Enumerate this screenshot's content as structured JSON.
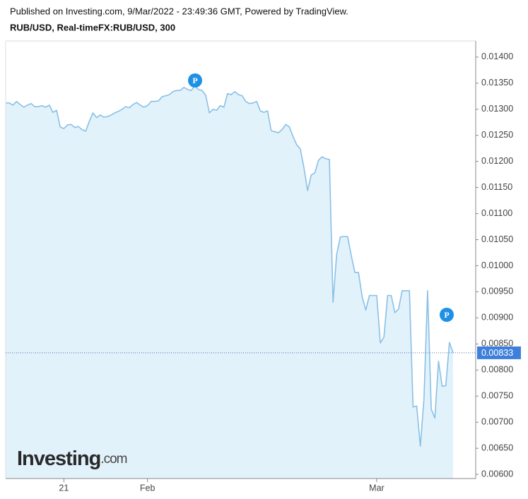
{
  "chart_data": {
    "type": "area",
    "title": "Published on Investing.com, 9/Mar/2022 - 23:49:36 GMT, Powered by TradingView.",
    "subtitle": "RUB/USD, Real-timeFX:RUB/USD, 300",
    "watermark": [
      "Investing",
      ".com"
    ],
    "annotations": [
      "P",
      "P"
    ],
    "color": "#89c0e6",
    "fill": "#e2f2fb",
    "ylim": [
      0.00592,
      0.01431
    ],
    "yticks": [
      {
        "value": 0.006,
        "label": "0.00600"
      },
      {
        "value": 0.0065,
        "label": "0.00650"
      },
      {
        "value": 0.007,
        "label": "0.00700"
      },
      {
        "value": 0.0075,
        "label": "0.00750"
      },
      {
        "value": 0.008,
        "label": "0.00800"
      },
      {
        "value": 0.0085,
        "label": "0.00850"
      },
      {
        "value": 0.009,
        "label": "0.00900"
      },
      {
        "value": 0.0095,
        "label": "0.00950"
      },
      {
        "value": 0.01,
        "label": "0.01000"
      },
      {
        "value": 0.0105,
        "label": "0.01050"
      },
      {
        "value": 0.011,
        "label": "0.01100"
      },
      {
        "value": 0.0115,
        "label": "0.01150"
      },
      {
        "value": 0.012,
        "label": "0.01200"
      },
      {
        "value": 0.0125,
        "label": "0.01250"
      },
      {
        "value": 0.013,
        "label": "0.01300"
      },
      {
        "value": 0.0135,
        "label": "0.01350"
      },
      {
        "value": 0.014,
        "label": "0.01400"
      }
    ],
    "categories": [
      null,
      null,
      null,
      null,
      null,
      null,
      null,
      null,
      null,
      null,
      null,
      null,
      null,
      null,
      null,
      null,
      "21",
      null,
      null,
      null,
      null,
      null,
      null,
      null,
      null,
      null,
      null,
      null,
      null,
      null,
      null,
      null,
      null,
      null,
      null,
      null,
      null,
      null,
      null,
      "Feb",
      null,
      null,
      null,
      null,
      null,
      null,
      null,
      null,
      null,
      null,
      null,
      null,
      null,
      null,
      null,
      null,
      null,
      null,
      null,
      null,
      null,
      null,
      null,
      null,
      null,
      null,
      null,
      null,
      null,
      null,
      null,
      null,
      null,
      null,
      null,
      null,
      null,
      null,
      null,
      null,
      null,
      null,
      null,
      null,
      null,
      null,
      null,
      null,
      null,
      null,
      null,
      null,
      null,
      null,
      null,
      null,
      null,
      null,
      null,
      null,
      null,
      null,
      "Mar",
      null,
      null,
      null,
      null,
      null,
      null,
      null,
      null,
      null,
      null,
      null,
      null,
      null,
      null,
      null,
      null,
      null,
      null,
      null,
      null,
      null
    ],
    "values": [
      0.01312,
      0.01312,
      0.01308,
      0.01315,
      0.01309,
      0.01304,
      0.01308,
      0.01311,
      0.01305,
      0.01305,
      0.01307,
      0.01304,
      0.01308,
      0.01294,
      0.01298,
      0.01266,
      0.01263,
      0.0127,
      0.01271,
      0.01265,
      0.01267,
      0.01261,
      0.01258,
      0.01277,
      0.01293,
      0.01284,
      0.01289,
      0.01285,
      0.01286,
      0.01289,
      0.01293,
      0.01296,
      0.013,
      0.01305,
      0.01303,
      0.01309,
      0.01313,
      0.01308,
      0.01304,
      0.01307,
      0.01315,
      0.01315,
      0.01316,
      0.01324,
      0.01326,
      0.01328,
      0.01334,
      0.01336,
      0.01336,
      0.01342,
      0.01338,
      0.01336,
      0.01345,
      0.01338,
      0.01336,
      0.01327,
      0.01293,
      0.013,
      0.01298,
      0.01307,
      0.01304,
      0.0133,
      0.01328,
      0.01334,
      0.01328,
      0.01326,
      0.01315,
      0.01311,
      0.01312,
      0.01315,
      0.01297,
      0.01294,
      0.01297,
      0.01259,
      0.01257,
      0.01255,
      0.01261,
      0.01271,
      0.01266,
      0.01248,
      0.01232,
      0.01224,
      0.01188,
      0.01144,
      0.01174,
      0.01178,
      0.01202,
      0.01209,
      0.01205,
      0.01204,
      0.0093,
      0.01022,
      0.01055,
      0.01056,
      0.01056,
      0.0102,
      0.00987,
      0.00987,
      0.00941,
      0.00915,
      0.00943,
      0.00943,
      0.00943,
      0.00852,
      0.00863,
      0.00943,
      0.00943,
      0.0091,
      0.00917,
      0.00952,
      0.00952,
      0.00952,
      0.00729,
      0.00731,
      0.00654,
      0.00745,
      0.00952,
      0.00725,
      0.00708,
      0.00817,
      0.00769,
      0.0077,
      0.00853,
      0.00833
    ]
  }
}
